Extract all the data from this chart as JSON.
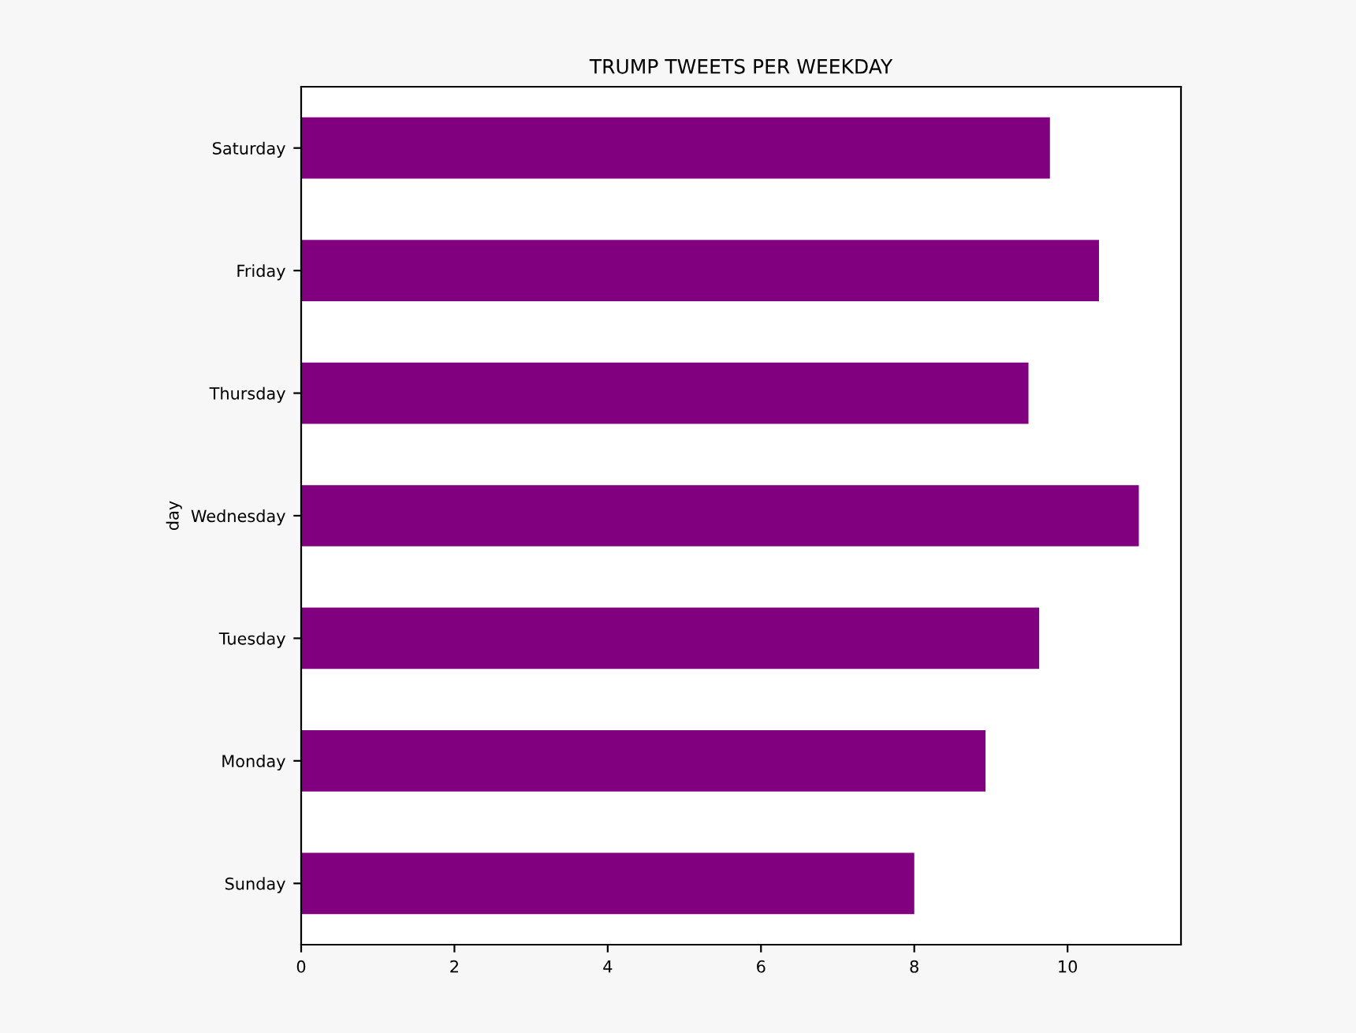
{
  "chart_data": {
    "type": "bar",
    "orientation": "horizontal",
    "title": "TRUMP TWEETS PER WEEKDAY",
    "ylabel": "day",
    "categories": [
      "Saturday",
      "Friday",
      "Thursday",
      "Wednesday",
      "Tuesday",
      "Monday",
      "Sunday"
    ],
    "values": [
      9.77,
      10.41,
      9.49,
      10.93,
      9.63,
      8.93,
      8.0
    ],
    "color": "#800080",
    "xlim": [
      0,
      11.48
    ],
    "xticks": [
      0,
      2,
      4,
      6,
      8,
      10
    ],
    "grid": false,
    "legend": false
  }
}
